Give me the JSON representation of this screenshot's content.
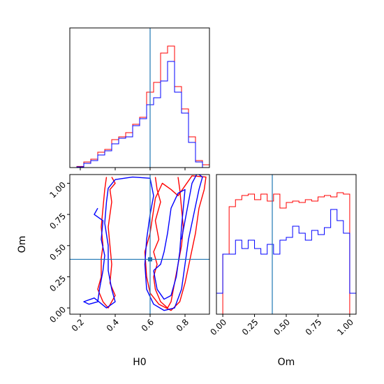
{
  "colors": {
    "red": "#ff0000",
    "blue": "#0000ff",
    "truth": "#1f77b4",
    "axis": "#000000"
  },
  "chart_data": [
    {
      "type": "histogram",
      "panel": "H0 marginal",
      "x_param": "H0",
      "xlim": [
        0.14,
        0.94
      ],
      "truth": 0.6,
      "bin_edges": [
        0.14,
        0.18,
        0.22,
        0.26,
        0.3,
        0.34,
        0.38,
        0.42,
        0.46,
        0.5,
        0.54,
        0.58,
        0.62,
        0.66,
        0.7,
        0.74,
        0.78,
        0.82,
        0.86,
        0.9,
        0.94
      ],
      "series": [
        {
          "color": "red",
          "counts": [
            0,
            0.008,
            0.04,
            0.06,
            0.11,
            0.13,
            0.2,
            0.22,
            0.25,
            0.31,
            0.36,
            0.54,
            0.61,
            0.82,
            0.87,
            0.58,
            0.42,
            0.22,
            0.05,
            0.02
          ]
        },
        {
          "color": "blue",
          "counts": [
            0,
            0.005,
            0.03,
            0.05,
            0.09,
            0.12,
            0.17,
            0.21,
            0.22,
            0.3,
            0.35,
            0.45,
            0.5,
            0.62,
            0.76,
            0.54,
            0.39,
            0.18,
            0.04,
            0.0
          ]
        }
      ]
    },
    {
      "type": "contour",
      "panel": "joint",
      "x_param": "H0",
      "y_param": "Om",
      "xlim": [
        0.14,
        0.94
      ],
      "ylim": [
        -0.05,
        1.07
      ],
      "truth": [
        0.6,
        0.39
      ],
      "series": [
        {
          "color": "red",
          "curves": [
            [
              [
                0.35,
                1.05
              ],
              [
                0.34,
                0.95
              ],
              [
                0.33,
                0.8
              ],
              [
                0.32,
                0.65
              ],
              [
                0.33,
                0.5
              ],
              [
                0.32,
                0.4
              ],
              [
                0.32,
                0.25
              ],
              [
                0.3,
                0.15
              ],
              [
                0.33,
                0.05
              ],
              [
                0.36,
                0.0
              ],
              [
                0.38,
                0.05
              ],
              [
                0.4,
                0.1
              ],
              [
                0.37,
                0.2
              ],
              [
                0.38,
                0.35
              ],
              [
                0.37,
                0.5
              ],
              [
                0.36,
                0.65
              ],
              [
                0.38,
                0.85
              ],
              [
                0.37,
                0.95
              ],
              [
                0.4,
                1.0
              ],
              [
                0.38,
                1.05
              ]
            ],
            [
              [
                0.63,
                1.05
              ],
              [
                0.64,
                0.95
              ],
              [
                0.66,
                0.85
              ],
              [
                0.63,
                0.7
              ],
              [
                0.65,
                0.55
              ],
              [
                0.62,
                0.45
              ],
              [
                0.64,
                0.35
              ],
              [
                0.62,
                0.25
              ],
              [
                0.63,
                0.15
              ],
              [
                0.66,
                0.05
              ],
              [
                0.7,
                0.0
              ],
              [
                0.72,
                0.05
              ],
              [
                0.74,
                0.2
              ],
              [
                0.76,
                0.35
              ],
              [
                0.78,
                0.5
              ],
              [
                0.79,
                0.65
              ],
              [
                0.78,
                0.8
              ],
              [
                0.77,
                0.95
              ],
              [
                0.76,
                1.05
              ]
            ],
            [
              [
                0.57,
                0.45
              ],
              [
                0.58,
                0.25
              ],
              [
                0.6,
                0.12
              ],
              [
                0.65,
                0.03
              ],
              [
                0.72,
                -0.02
              ],
              [
                0.77,
                0.05
              ],
              [
                0.8,
                0.2
              ],
              [
                0.83,
                0.4
              ],
              [
                0.86,
                0.6
              ],
              [
                0.88,
                0.8
              ],
              [
                0.91,
                0.95
              ],
              [
                0.92,
                1.05
              ],
              [
                0.84,
                1.06
              ],
              [
                0.8,
                0.98
              ],
              [
                0.76,
                0.9
              ],
              [
                0.72,
                0.95
              ],
              [
                0.67,
                1.0
              ],
              [
                0.63,
                0.88
              ],
              [
                0.6,
                0.6
              ],
              [
                0.57,
                0.45
              ]
            ]
          ]
        },
        {
          "color": "blue",
          "curves": [
            [
              [
                0.4,
                1.03
              ],
              [
                0.5,
                1.05
              ],
              [
                0.6,
                1.04
              ],
              [
                0.62,
                0.9
              ],
              [
                0.6,
                0.75
              ],
              [
                0.58,
                0.55
              ],
              [
                0.57,
                0.35
              ],
              [
                0.58,
                0.15
              ],
              [
                0.62,
                0.03
              ],
              [
                0.68,
                -0.02
              ],
              [
                0.74,
                0.0
              ],
              [
                0.78,
                0.15
              ],
              [
                0.8,
                0.35
              ],
              [
                0.82,
                0.55
              ],
              [
                0.85,
                0.75
              ],
              [
                0.88,
                0.95
              ],
              [
                0.9,
                1.05
              ],
              [
                0.87,
                1.08
              ],
              [
                0.84,
                1.0
              ],
              [
                0.82,
                0.85
              ],
              [
                0.8,
                0.7
              ],
              [
                0.78,
                0.55
              ]
            ],
            [
              [
                0.3,
                0.8
              ],
              [
                0.28,
                0.75
              ],
              [
                0.33,
                0.7
              ],
              [
                0.32,
                0.55
              ],
              [
                0.34,
                0.42
              ],
              [
                0.33,
                0.3
              ],
              [
                0.31,
                0.15
              ],
              [
                0.3,
                0.05
              ],
              [
                0.25,
                0.03
              ],
              [
                0.22,
                0.05
              ],
              [
                0.28,
                0.08
              ],
              [
                0.35,
                0.0
              ],
              [
                0.4,
                0.05
              ],
              [
                0.38,
                0.15
              ],
              [
                0.36,
                0.3
              ],
              [
                0.36,
                0.5
              ],
              [
                0.34,
                0.68
              ],
              [
                0.35,
                0.85
              ],
              [
                0.36,
                0.96
              ],
              [
                0.4,
                1.03
              ]
            ],
            [
              [
                0.62,
                0.3
              ],
              [
                0.64,
                0.15
              ],
              [
                0.68,
                0.07
              ],
              [
                0.72,
                0.1
              ],
              [
                0.75,
                0.25
              ],
              [
                0.77,
                0.45
              ],
              [
                0.78,
                0.65
              ],
              [
                0.79,
                0.8
              ],
              [
                0.8,
                0.95
              ],
              [
                0.76,
                0.92
              ],
              [
                0.72,
                0.8
              ],
              [
                0.7,
                0.6
              ],
              [
                0.68,
                0.45
              ],
              [
                0.66,
                0.35
              ],
              [
                0.62,
                0.3
              ]
            ]
          ]
        }
      ]
    },
    {
      "type": "histogram",
      "panel": "Om marginal",
      "x_param": "Om",
      "xlim": [
        -0.05,
        1.05
      ],
      "truth": 0.39,
      "bin_edges": [
        -0.05,
        0.0,
        0.05,
        0.1,
        0.15,
        0.2,
        0.25,
        0.3,
        0.35,
        0.4,
        0.45,
        0.5,
        0.55,
        0.6,
        0.65,
        0.7,
        0.75,
        0.8,
        0.85,
        0.9,
        0.95,
        1.0,
        1.05
      ],
      "series": [
        {
          "color": "red",
          "counts": [
            0,
            0.43,
            0.77,
            0.82,
            0.85,
            0.86,
            0.82,
            0.86,
            0.81,
            0.86,
            0.76,
            0.8,
            0.81,
            0.8,
            0.82,
            0.81,
            0.84,
            0.85,
            0.84,
            0.87,
            0.86,
            0
          ]
        },
        {
          "color": "blue",
          "counts": [
            0.15,
            0.43,
            0.43,
            0.53,
            0.47,
            0.53,
            0.47,
            0.43,
            0.5,
            0.43,
            0.53,
            0.55,
            0.63,
            0.58,
            0.53,
            0.6,
            0.57,
            0.62,
            0.75,
            0.67,
            0.58,
            0.15
          ]
        }
      ]
    }
  ],
  "axes": {
    "h0_ticks": [
      "0.2",
      "0.4",
      "0.6",
      "0.8"
    ],
    "h0_tick_values": [
      0.2,
      0.4,
      0.6,
      0.8
    ],
    "om_ticks": [
      "0.00",
      "0.25",
      "0.50",
      "0.75",
      "1.00"
    ],
    "om_tick_values": [
      0.0,
      0.25,
      0.5,
      0.75,
      1.0
    ],
    "xlabel_joint": "H0",
    "ylabel_joint": "Om",
    "xlabel_om": "Om"
  }
}
